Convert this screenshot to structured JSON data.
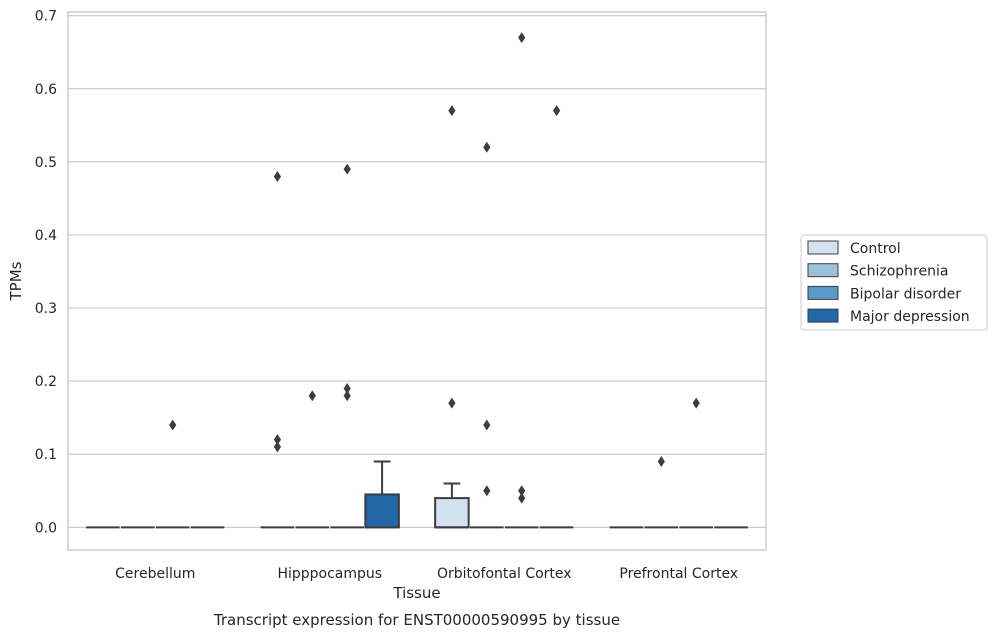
{
  "caption": "Transcript expression for ENST00000590995 by tissue",
  "chart_data": {
    "type": "box",
    "xlabel": "Tissue",
    "ylabel": "TPMs",
    "ylim": [
      -0.031,
      0.705
    ],
    "yticks": [
      0.0,
      0.1,
      0.2,
      0.3,
      0.4,
      0.5,
      0.6,
      0.7
    ],
    "ytick_labels": [
      "0.0",
      "0.1",
      "0.2",
      "0.3",
      "0.4",
      "0.5",
      "0.6",
      "0.7"
    ],
    "grid": "horizontal",
    "legend_position": "right",
    "categories": [
      "Cerebellum",
      "Hipppocampus",
      "Orbitofontal Cortex",
      "Prefrontal Cortex"
    ],
    "series": [
      {
        "name": "Control",
        "color": "#d2e2f1",
        "boxes": [
          {
            "q1": 0,
            "median": 0,
            "q3": 0,
            "whislo": 0,
            "whishi": 0,
            "fliers": []
          },
          {
            "q1": 0,
            "median": 0,
            "q3": 0,
            "whislo": 0,
            "whishi": 0,
            "fliers": [
              0.48,
              0.12,
              0.11
            ]
          },
          {
            "q1": 0,
            "median": 0,
            "q3": 0.04,
            "whislo": 0,
            "whishi": 0.06,
            "fliers": [
              0.57,
              0.17
            ]
          },
          {
            "q1": 0,
            "median": 0,
            "q3": 0,
            "whislo": 0,
            "whishi": 0,
            "fliers": []
          }
        ]
      },
      {
        "name": "Schizophrenia",
        "color": "#9ac2dd",
        "boxes": [
          {
            "q1": 0,
            "median": 0,
            "q3": 0,
            "whislo": 0,
            "whishi": 0,
            "fliers": []
          },
          {
            "q1": 0,
            "median": 0,
            "q3": 0,
            "whislo": 0,
            "whishi": 0,
            "fliers": [
              0.18
            ]
          },
          {
            "q1": 0,
            "median": 0,
            "q3": 0,
            "whislo": 0,
            "whishi": 0,
            "fliers": [
              0.52,
              0.14,
              0.05
            ]
          },
          {
            "q1": 0,
            "median": 0,
            "q3": 0,
            "whislo": 0,
            "whishi": 0,
            "fliers": [
              0.09
            ]
          }
        ]
      },
      {
        "name": "Bipolar disorder",
        "color": "#5a9ac8",
        "boxes": [
          {
            "q1": 0,
            "median": 0,
            "q3": 0,
            "whislo": 0,
            "whishi": 0,
            "fliers": [
              0.14
            ]
          },
          {
            "q1": 0,
            "median": 0,
            "q3": 0,
            "whislo": 0,
            "whishi": 0,
            "fliers": [
              0.49,
              0.19,
              0.18
            ]
          },
          {
            "q1": 0,
            "median": 0,
            "q3": 0,
            "whislo": 0,
            "whishi": 0,
            "fliers": [
              0.67,
              0.05,
              0.04
            ]
          },
          {
            "q1": 0,
            "median": 0,
            "q3": 0,
            "whislo": 0,
            "whishi": 0,
            "fliers": [
              0.17
            ]
          }
        ]
      },
      {
        "name": "Major depression",
        "color": "#2268a9",
        "boxes": [
          {
            "q1": 0,
            "median": 0,
            "q3": 0,
            "whislo": 0,
            "whishi": 0,
            "fliers": []
          },
          {
            "q1": 0,
            "median": 0,
            "q3": 0.045,
            "whislo": 0,
            "whishi": 0.09,
            "fliers": []
          },
          {
            "q1": 0,
            "median": 0,
            "q3": 0,
            "whislo": 0,
            "whishi": 0,
            "fliers": [
              0.57
            ]
          },
          {
            "q1": 0,
            "median": 0,
            "q3": 0,
            "whislo": 0,
            "whishi": 0,
            "fliers": []
          }
        ]
      }
    ]
  }
}
